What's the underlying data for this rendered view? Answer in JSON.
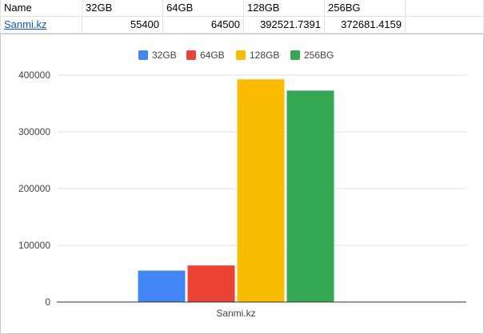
{
  "sheet": {
    "header": [
      "Name",
      "32GB",
      "64GB",
      "128GB",
      "256BG"
    ],
    "rows": [
      {
        "name": "Sanmi.kz",
        "values": [
          "55400",
          "64500",
          "392521.7391",
          "372681.4159"
        ]
      }
    ]
  },
  "chart_data": {
    "type": "bar",
    "categories": [
      "Sanmi.kz"
    ],
    "series": [
      {
        "name": "32GB",
        "values": [
          55400
        ],
        "color": "#4285f4"
      },
      {
        "name": "64GB",
        "values": [
          64500
        ],
        "color": "#ea4335"
      },
      {
        "name": "128GB",
        "values": [
          392521.7391
        ],
        "color": "#fbbc04"
      },
      {
        "name": "256BG",
        "values": [
          372681.4159
        ],
        "color": "#34a853"
      }
    ],
    "title": "",
    "xlabel": "",
    "ylabel": "",
    "ylim": [
      0,
      400000
    ],
    "yticks": [
      "0",
      "100000",
      "200000",
      "300000",
      "400000"
    ],
    "grid": true,
    "legend_position": "top"
  }
}
